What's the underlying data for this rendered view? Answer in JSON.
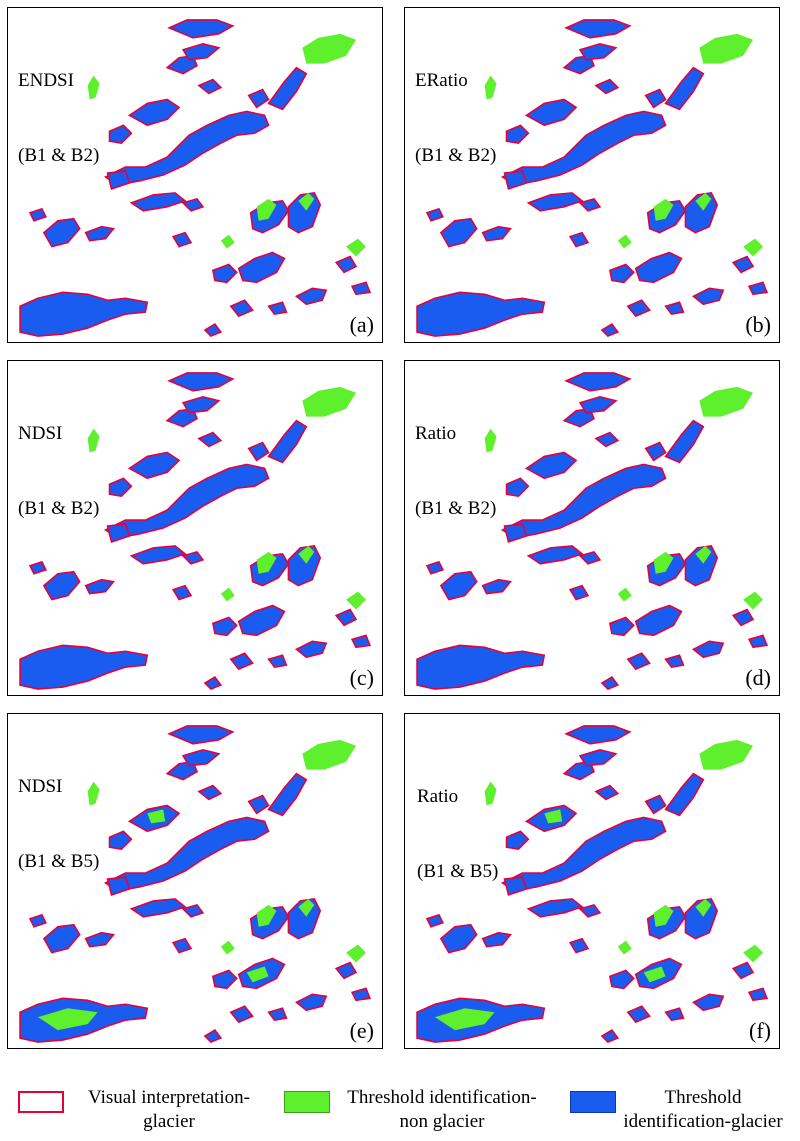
{
  "panels": [
    {
      "title_line1": "ENDSI",
      "title_line2": "(B1 & B2)",
      "label": "(a)"
    },
    {
      "title_line1": "ERatio",
      "title_line2": "(B1 & B2)",
      "label": "(b)"
    },
    {
      "title_line1": "NDSI",
      "title_line2": "(B1 & B2)",
      "label": "(c)"
    },
    {
      "title_line1": "Ratio",
      "title_line2": "(B1 & B2)",
      "label": "(d)"
    },
    {
      "title_line1": "NDSI",
      "title_line2": "(B1 & B5)",
      "label": "(e)"
    },
    {
      "title_line1": "Ratio",
      "title_line2": "(B1 & B5)",
      "label": "(f)"
    }
  ],
  "legend": {
    "visual": {
      "line1": "Visual interpretation-",
      "line2": "glacier",
      "color": "#e8003a"
    },
    "non_glacier": {
      "line1": "Threshold identification-",
      "line2": "non glacier",
      "color": "#5ef02c"
    },
    "glacier": {
      "line1": "Threshold",
      "line2": "identification-glacier",
      "color": "#1a5cf0"
    }
  },
  "colors": {
    "glacier_fill": "#1a5cf0",
    "non_glacier_fill": "#5ef02c",
    "outline": "#e8003a"
  }
}
